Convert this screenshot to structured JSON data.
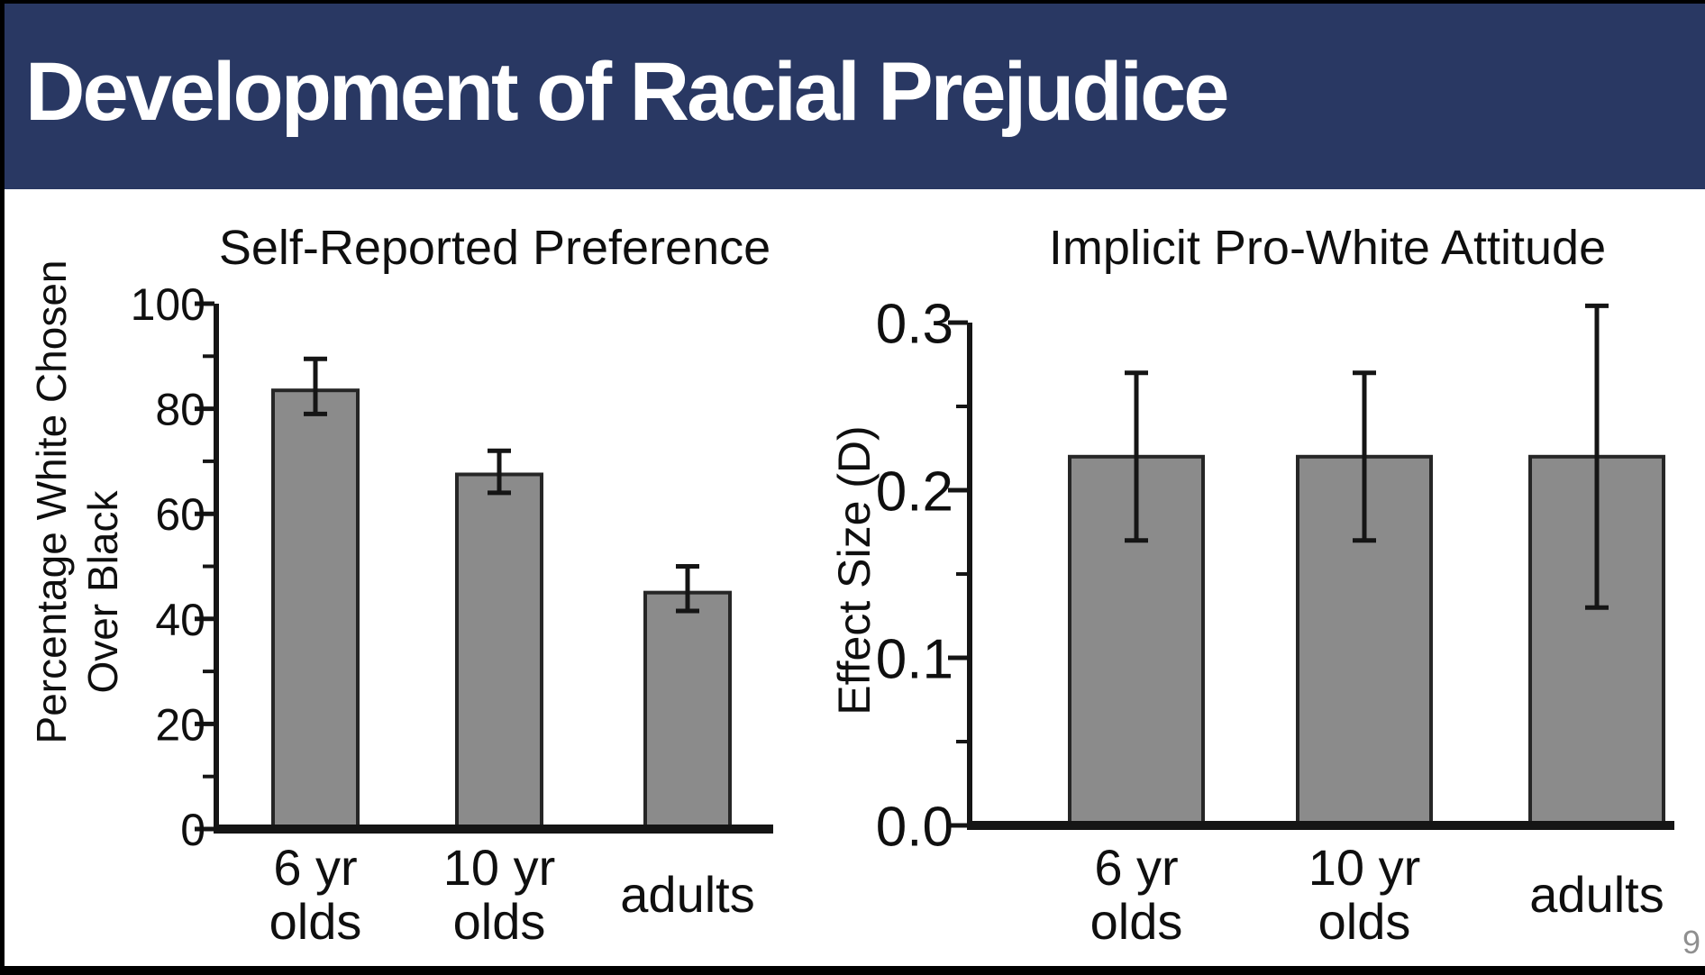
{
  "header": {
    "title": "Development of Racial Prejudice",
    "background_color": "#293863",
    "text_color": "#ffffff"
  },
  "footer": {
    "page_number": "9"
  },
  "colors": {
    "bar_fill": "#8b8b8b",
    "bar_stroke": "#262626",
    "axis_color": "#151515",
    "text_color": "#0f0f0f",
    "slide_frame": "#000000",
    "content_background": "#ffffff"
  },
  "chart_data": [
    {
      "type": "bar",
      "title": "Self-Reported Preference",
      "ylabel": "Percentage White Chosen Over Black",
      "ylabel_lines": [
        "Percentage White Chosen",
        "Over Black"
      ],
      "xlabel": "",
      "categories": [
        "6 yr olds",
        "10 yr olds",
        "adults"
      ],
      "category_lines": [
        [
          "6 yr",
          "olds"
        ],
        [
          "10 yr",
          "olds"
        ],
        [
          "adults"
        ]
      ],
      "values": [
        83.5,
        67.5,
        45
      ],
      "error_low": [
        79,
        64,
        41.5
      ],
      "error_high": [
        89.5,
        72,
        50
      ],
      "ylim": [
        0,
        100
      ],
      "yticks": [
        {
          "value": 0,
          "label": "0"
        },
        {
          "value": 20,
          "label": "20"
        },
        {
          "value": 40,
          "label": "40"
        },
        {
          "value": 60,
          "label": "60"
        },
        {
          "value": 80,
          "label": "80"
        },
        {
          "value": 100,
          "label": "100"
        }
      ],
      "minor_yticks": [
        10,
        30,
        50,
        70,
        90
      ],
      "grid": false,
      "legend": null
    },
    {
      "type": "bar",
      "title": "Implicit Pro-White Attitude",
      "ylabel": "Effect Size (D)",
      "ylabel_lines": [
        "Effect Size (D)"
      ],
      "xlabel": "",
      "categories": [
        "6 yr olds",
        "10 yr olds",
        "adults"
      ],
      "category_lines": [
        [
          "6 yr",
          "olds"
        ],
        [
          "10 yr",
          "olds"
        ],
        [
          "adults"
        ]
      ],
      "values": [
        0.22,
        0.22,
        0.22
      ],
      "error_low": [
        0.17,
        0.17,
        0.13
      ],
      "error_high": [
        0.27,
        0.27,
        0.31
      ],
      "ylim": [
        0,
        0.3
      ],
      "yticks": [
        {
          "value": 0,
          "label": "0.0"
        },
        {
          "value": 0.1,
          "label": "0.1"
        },
        {
          "value": 0.2,
          "label": "0.2"
        },
        {
          "value": 0.3,
          "label": "0.3"
        }
      ],
      "minor_yticks": [
        0.05,
        0.15,
        0.25
      ],
      "grid": false,
      "legend": null
    }
  ]
}
